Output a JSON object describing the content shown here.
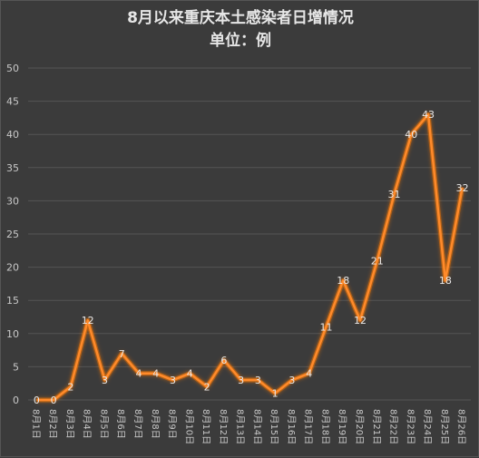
{
  "chart_data": {
    "type": "line",
    "title": "8月以来重庆本土感染者日增情况",
    "subtitle": "单位：例",
    "categories": [
      "8月1日",
      "8月2日",
      "8月3日",
      "8月4日",
      "8月5日",
      "8月6日",
      "8月7日",
      "8月8日",
      "8月9日",
      "8月10日",
      "8月11日",
      "8月12日",
      "8月13日",
      "8月14日",
      "8月15日",
      "8月16日",
      "8月17日",
      "8月18日",
      "8月19日",
      "8月20日",
      "8月21日",
      "8月22日",
      "8月23日",
      "8月24日",
      "8月25日",
      "8月26日"
    ],
    "series": [
      {
        "values": [
          0,
          0,
          2,
          12,
          3,
          7,
          4,
          4,
          3,
          4,
          2,
          6,
          3,
          3,
          1,
          3,
          4,
          11,
          18,
          12,
          21,
          31,
          40,
          43,
          18,
          32
        ],
        "color": "#ff8a2a"
      }
    ],
    "yticks": [
      0,
      5,
      10,
      15,
      20,
      25,
      30,
      35,
      40,
      45,
      50
    ],
    "ylim": [
      0,
      50
    ],
    "grid": true,
    "legend": "none",
    "colors": {
      "background": "#3b3b3b",
      "grid": "#555555",
      "line": "#ff8a2a",
      "glow": "#ff7a00",
      "text": "#c8c8c8"
    }
  }
}
